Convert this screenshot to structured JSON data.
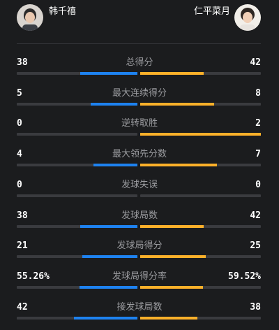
{
  "players": {
    "left": {
      "name": "韩千禧",
      "avatar_icon": "player-photo-icon"
    },
    "right": {
      "name": "仁平菜月",
      "avatar_icon": "player-photo-icon"
    }
  },
  "colors": {
    "left_bar": "#1e82f0",
    "right_bar": "#fbb02a",
    "track": "#3a3b3f"
  },
  "stats": [
    {
      "label": "总得分",
      "left": "38",
      "right": "42",
      "left_share": 0.475,
      "right_share": 0.525
    },
    {
      "label": "最大连续得分",
      "left": "5",
      "right": "8",
      "left_share": 0.385,
      "right_share": 0.615
    },
    {
      "label": "逆转取胜",
      "left": "0",
      "right": "2",
      "left_share": 0.0,
      "right_share": 1.0
    },
    {
      "label": "最大领先分数",
      "left": "4",
      "right": "7",
      "left_share": 0.364,
      "right_share": 0.636
    },
    {
      "label": "发球失误",
      "left": "0",
      "right": "0",
      "left_share": 0.0,
      "right_share": 0.0
    },
    {
      "label": "发球局数",
      "left": "38",
      "right": "42",
      "left_share": 0.475,
      "right_share": 0.525
    },
    {
      "label": "发球局得分",
      "left": "21",
      "right": "25",
      "left_share": 0.457,
      "right_share": 0.543
    },
    {
      "label": "发球局得分率",
      "left": "55.26%",
      "right": "59.52%",
      "left_share": 0.481,
      "right_share": 0.519
    },
    {
      "label": "接发球局数",
      "left": "42",
      "right": "38",
      "left_share": 0.525,
      "right_share": 0.475
    }
  ]
}
